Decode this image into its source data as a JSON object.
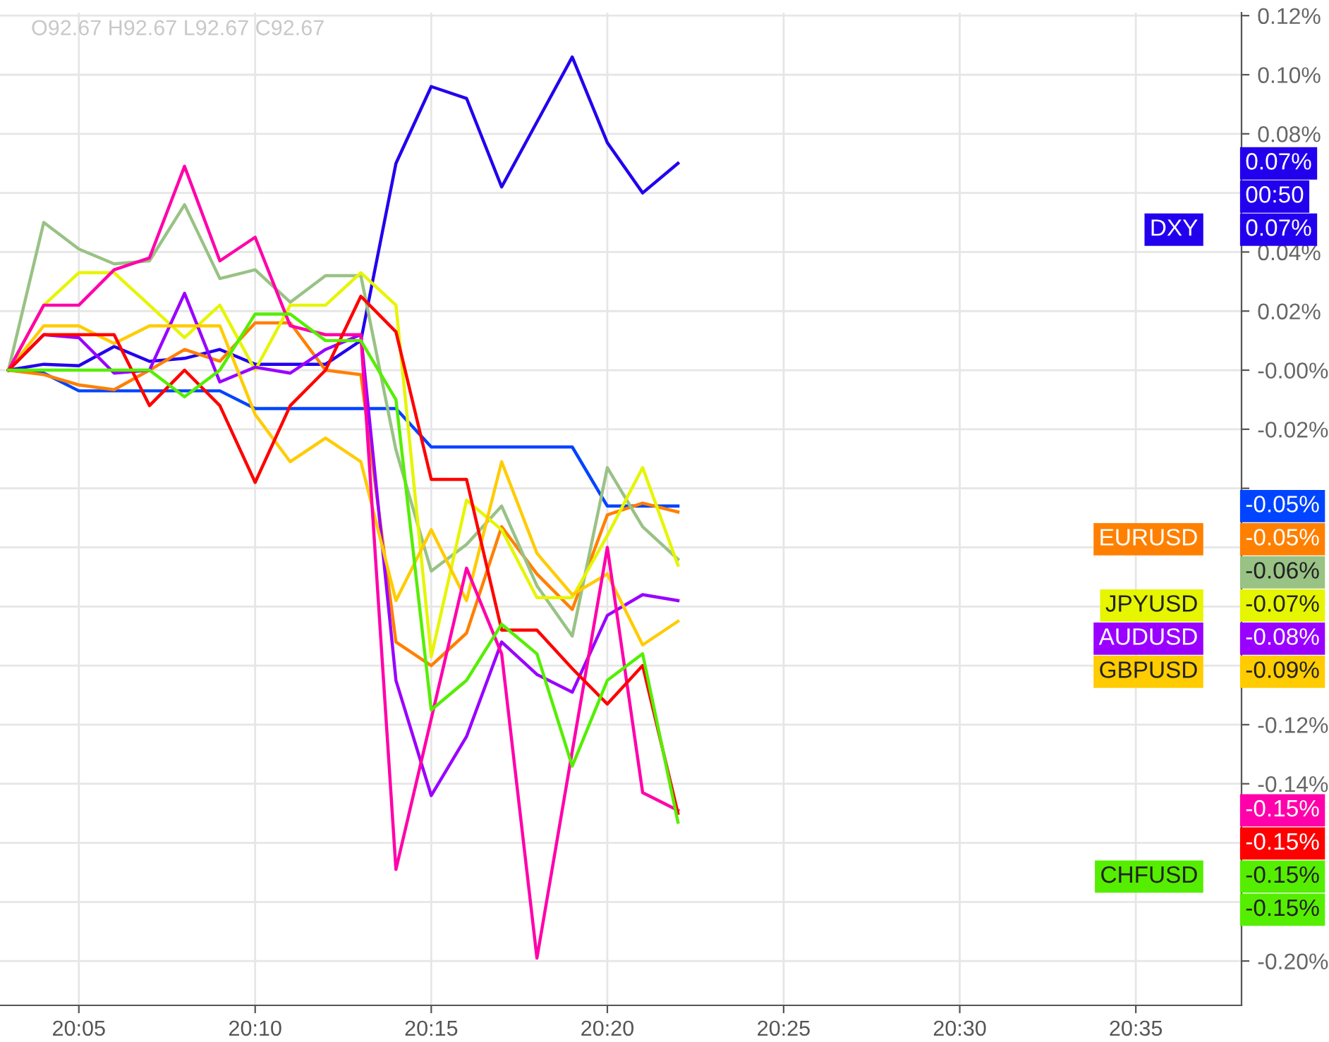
{
  "chart_data": {
    "type": "line",
    "x": [
      20.05,
      20.0667,
      20.0833,
      20.1,
      20.1167,
      20.1333,
      20.15,
      20.1667,
      20.1833,
      20.2,
      20.2167,
      20.2333,
      20.25,
      20.2667,
      20.2833,
      20.3,
      20.3167,
      20.3333,
      20.35,
      20.3667
    ],
    "series": [
      {
        "name": "DXY",
        "color": "#2200ee",
        "values": [
          0,
          0.002,
          0.0015,
          0.008,
          0.003,
          0.004,
          0.007,
          0.002,
          0.002,
          0.002,
          0.01,
          0.07,
          0.096,
          0.092,
          0.062,
          0.084,
          0.106,
          0.077,
          0.06,
          0.07
        ]
      },
      {
        "color": "#0044ff",
        "values": [
          0,
          -0.001,
          -0.007,
          -0.007,
          -0.007,
          -0.007,
          -0.007,
          -0.013,
          -0.013,
          -0.013,
          -0.013,
          -0.013,
          -0.026,
          -0.026,
          -0.026,
          -0.026,
          -0.026,
          -0.046,
          -0.046,
          -0.046
        ]
      },
      {
        "name": "EURUSD",
        "color": "#ff8000",
        "values": [
          0,
          -0.0015,
          -0.005,
          -0.0066,
          0,
          0.007,
          0.003,
          0.016,
          0.016,
          0,
          -0.0015,
          -0.092,
          -0.1,
          -0.089,
          -0.053,
          -0.069,
          -0.081,
          -0.049,
          -0.045,
          -0.048
        ]
      },
      {
        "color": "#99c285",
        "values": [
          0,
          0.05,
          0.041,
          0.036,
          0.037,
          0.056,
          0.031,
          0.034,
          0.023,
          0.032,
          0.032,
          -0.027,
          -0.068,
          -0.059,
          -0.046,
          -0.073,
          -0.09,
          -0.033,
          -0.053,
          -0.064
        ]
      },
      {
        "name": "JPYUSD",
        "color": "#e6f500",
        "values": [
          0,
          0.022,
          0.033,
          0.033,
          0.022,
          0.011,
          0.022,
          0,
          0.022,
          0.022,
          0.033,
          0.022,
          -0.097,
          -0.044,
          -0.054,
          -0.077,
          -0.077,
          -0.056,
          -0.033,
          -0.066
        ]
      },
      {
        "name": "AUDUSD",
        "color": "#9900ff",
        "values": [
          0,
          0.012,
          0.011,
          -0.001,
          0,
          0.026,
          -0.004,
          0.001,
          -0.001,
          0.007,
          0.012,
          -0.105,
          -0.144,
          -0.124,
          -0.092,
          -0.103,
          -0.109,
          -0.083,
          -0.076,
          -0.078
        ]
      },
      {
        "name": "GBPUSD",
        "color": "#ffcc00",
        "values": [
          0,
          0.015,
          0.015,
          0.009,
          0.015,
          0.015,
          0.015,
          -0.015,
          -0.031,
          -0.023,
          -0.031,
          -0.078,
          -0.054,
          -0.078,
          -0.031,
          -0.062,
          -0.076,
          -0.069,
          -0.093,
          -0.085
        ]
      },
      {
        "color": "#ff00aa",
        "values": [
          0,
          0.022,
          0.022,
          0.034,
          0.038,
          0.069,
          0.037,
          0.045,
          0.015,
          0.012,
          0.012,
          -0.169,
          -0.118,
          -0.067,
          -0.096,
          -0.199,
          -0.129,
          -0.06,
          -0.143,
          -0.149
        ]
      },
      {
        "color": "#ff0000",
        "values": [
          0,
          0.012,
          0.012,
          0.012,
          -0.012,
          0,
          -0.012,
          -0.038,
          -0.012,
          0,
          0.025,
          0.013,
          -0.037,
          -0.037,
          -0.088,
          -0.088,
          -0.101,
          -0.113,
          -0.1,
          -0.15
        ]
      },
      {
        "name": "CHFUSD",
        "color": "#55ee00",
        "values": [
          0,
          0,
          0,
          0,
          0,
          -0.009,
          0,
          0.019,
          0.019,
          0.01,
          0.01,
          -0.01,
          -0.115,
          -0.105,
          -0.086,
          -0.096,
          -0.134,
          -0.105,
          -0.096,
          -0.153
        ]
      }
    ],
    "annotations": [
      "O92.67 H92.67 L92.67 C92.67",
      "0.07%",
      "00:50",
      "0.07%",
      "-0.05%",
      "-0.05%",
      "-0.06%",
      "-0.07%",
      "-0.08%",
      "-0.09%",
      "-0.15%",
      "-0.15%",
      "-0.15%",
      "-0.15%"
    ],
    "xlim": [
      20.046,
      20.6333
    ],
    "xticks": [
      {
        "value": 20.0833,
        "label": "20:05"
      },
      {
        "value": 20.1667,
        "label": "20:10"
      },
      {
        "value": 20.25,
        "label": "20:15"
      },
      {
        "value": 20.3333,
        "label": "20:20"
      },
      {
        "value": 20.4167,
        "label": "20:25"
      },
      {
        "value": 20.5,
        "label": "20:30"
      },
      {
        "value": 20.5833,
        "label": "20:35"
      }
    ],
    "ylim": [
      -0.215,
      0.121
    ],
    "yticks": [
      {
        "value": 0.12,
        "label": "0.12%"
      },
      {
        "value": 0.1,
        "label": "0.10%"
      },
      {
        "value": 0.08,
        "label": "0.08%"
      },
      {
        "value": 0.06,
        "label": null
      },
      {
        "value": 0.04,
        "label": "0.04%"
      },
      {
        "value": 0.02,
        "label": "0.02%"
      },
      {
        "value": 0,
        "label": "-0.00%"
      },
      {
        "value": -0.02,
        "label": "-0.02%"
      },
      {
        "value": -0.04,
        "label": null
      },
      {
        "value": -0.06,
        "label": null
      },
      {
        "value": -0.08,
        "label": null
      },
      {
        "value": -0.1,
        "label": null
      },
      {
        "value": -0.12,
        "label": "-0.12%"
      },
      {
        "value": -0.14,
        "label": "-0.14%"
      },
      {
        "value": -0.16,
        "label": null
      },
      {
        "value": -0.18,
        "label": null
      },
      {
        "value": -0.2,
        "label": "-0.20%"
      }
    ],
    "grid": true,
    "legend": "right",
    "line_style": "solid",
    "marker": "none"
  }
}
